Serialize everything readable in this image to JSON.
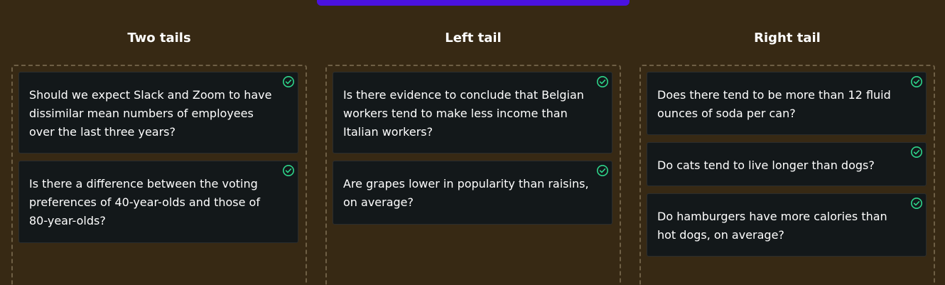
{
  "colors": {
    "background": "#372914",
    "accent_bar": "#4a12e0",
    "card_bg": "#13181a",
    "check": "#2ed48a",
    "dashed_border": "#6e5f45"
  },
  "columns": [
    {
      "title": "Two tails",
      "cards": [
        {
          "text": "Should we expect Slack and Zoom to have dissimilar mean numbers of employees over the last three years?",
          "icon": "check-circle-icon"
        },
        {
          "text": "Is there a difference between the voting preferences of 40-year-olds and those of 80-year-olds?",
          "icon": "check-circle-icon"
        }
      ]
    },
    {
      "title": "Left tail",
      "cards": [
        {
          "text": "Is there evidence to conclude that Belgian workers tend to make less income than Italian workers?",
          "icon": "check-circle-icon"
        },
        {
          "text": "Are grapes lower in popularity than raisins, on average?",
          "icon": "check-circle-icon"
        }
      ]
    },
    {
      "title": "Right tail",
      "cards": [
        {
          "text": "Does there tend to be more than 12 fluid ounces of soda per can?",
          "icon": "check-circle-icon"
        },
        {
          "text": "Do cats tend to live longer than dogs?",
          "icon": "check-circle-icon"
        },
        {
          "text": "Do hamburgers have more calories than hot dogs, on average?",
          "icon": "check-circle-icon"
        }
      ]
    }
  ]
}
